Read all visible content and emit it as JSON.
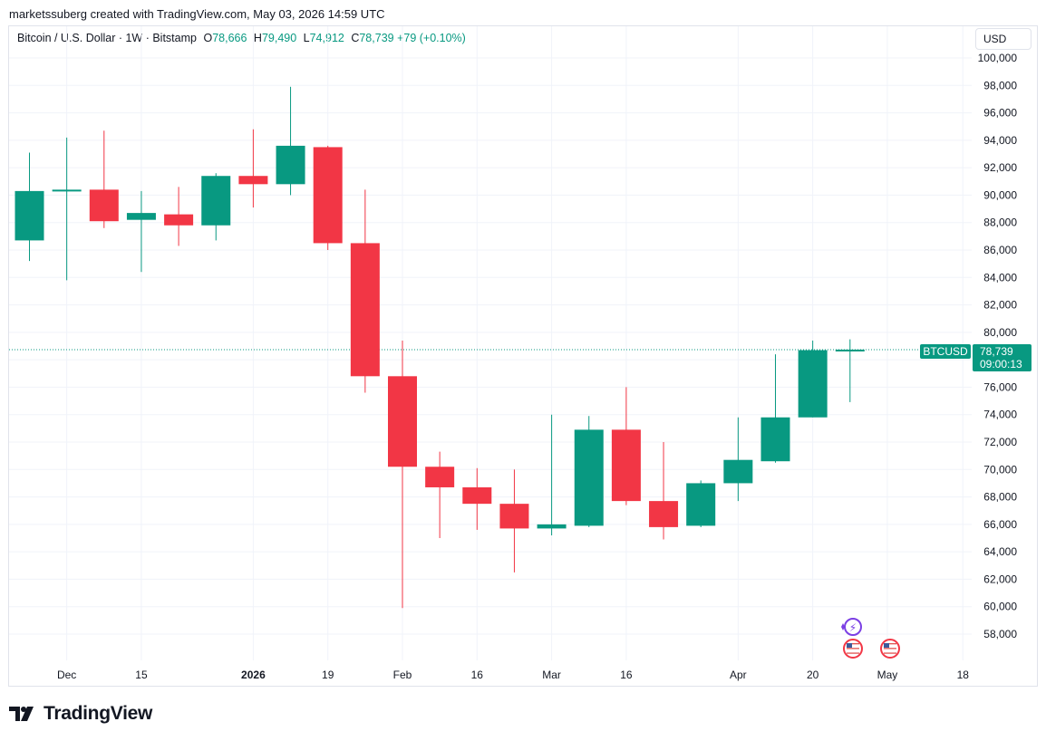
{
  "attribution": "marketssuberg created with TradingView.com, May 03, 2026 14:59 UTC",
  "legend": {
    "symbol": "Bitcoin / U.S. Dollar · 1W · Bitstamp",
    "o_label": "O",
    "o": "78,666",
    "h_label": "H",
    "h": "79,490",
    "l_label": "L",
    "l": "74,912",
    "c_label": "C",
    "c": "78,739",
    "change": "+79 (+0.10%)"
  },
  "currency": "USD",
  "price_tag": {
    "symbol": "BTCUSD",
    "price": "78,739",
    "countdown": "09:00:13"
  },
  "brand": "TradingView",
  "colors": {
    "up": "#089981",
    "down": "#f23645",
    "grid": "#f0f3fa",
    "text": "#131722",
    "purple": "#7b3fe4"
  },
  "chart_data": {
    "type": "candlestick",
    "interval": "1W",
    "ylim": [
      56000,
      101000
    ],
    "y_ticks": [
      58000,
      60000,
      62000,
      64000,
      66000,
      68000,
      70000,
      72000,
      74000,
      76000,
      78000,
      80000,
      82000,
      84000,
      86000,
      88000,
      90000,
      92000,
      94000,
      96000,
      98000,
      100000
    ],
    "x_ticks": [
      {
        "label": "Dec",
        "index": 1
      },
      {
        "label": "15",
        "index": 3
      },
      {
        "label": "2026",
        "index": 6,
        "bold": true
      },
      {
        "label": "19",
        "index": 8
      },
      {
        "label": "Feb",
        "index": 10
      },
      {
        "label": "16",
        "index": 12
      },
      {
        "label": "Mar",
        "index": 14
      },
      {
        "label": "16",
        "index": 16
      },
      {
        "label": "Apr",
        "index": 19
      },
      {
        "label": "20",
        "index": 21
      },
      {
        "label": "May",
        "index": 23
      },
      {
        "label": "18",
        "index": 25
      }
    ],
    "candles": [
      {
        "o": 86700,
        "h": 93100,
        "l": 85200,
        "c": 90300
      },
      {
        "o": 90300,
        "h": 94200,
        "l": 83800,
        "c": 90400
      },
      {
        "o": 90400,
        "h": 94700,
        "l": 87600,
        "c": 88100
      },
      {
        "o": 88200,
        "h": 90300,
        "l": 84400,
        "c": 88700
      },
      {
        "o": 88600,
        "h": 90600,
        "l": 86300,
        "c": 87800
      },
      {
        "o": 87800,
        "h": 91600,
        "l": 86700,
        "c": 91400
      },
      {
        "o": 91400,
        "h": 94800,
        "l": 89100,
        "c": 90800
      },
      {
        "o": 90800,
        "h": 97900,
        "l": 90000,
        "c": 93600
      },
      {
        "o": 93500,
        "h": 93600,
        "l": 86000,
        "c": 86500
      },
      {
        "o": 86500,
        "h": 90400,
        "l": 75600,
        "c": 76800
      },
      {
        "o": 76800,
        "h": 79400,
        "l": 59900,
        "c": 70200
      },
      {
        "o": 70200,
        "h": 71300,
        "l": 65000,
        "c": 68700
      },
      {
        "o": 68700,
        "h": 70100,
        "l": 65600,
        "c": 67500
      },
      {
        "o": 67500,
        "h": 70000,
        "l": 62500,
        "c": 65700
      },
      {
        "o": 65700,
        "h": 74000,
        "l": 65200,
        "c": 66000
      },
      {
        "o": 65900,
        "h": 73900,
        "l": 65800,
        "c": 72900
      },
      {
        "o": 72900,
        "h": 76000,
        "l": 67400,
        "c": 67700
      },
      {
        "o": 67700,
        "h": 72000,
        "l": 64900,
        "c": 65800
      },
      {
        "o": 65900,
        "h": 69200,
        "l": 65800,
        "c": 69000
      },
      {
        "o": 69000,
        "h": 73800,
        "l": 67700,
        "c": 70700
      },
      {
        "o": 70600,
        "h": 78400,
        "l": 70500,
        "c": 73800
      },
      {
        "o": 73800,
        "h": 79400,
        "l": 73800,
        "c": 78700
      },
      {
        "o": 78666,
        "h": 79490,
        "l": 74912,
        "c": 78739
      }
    ],
    "last_price": 78739
  },
  "event_icons": [
    {
      "name": "flash-event-icon",
      "index": 22,
      "glyph": "⚡"
    },
    {
      "name": "us-flag-event-icon",
      "index": 22,
      "glyph": ""
    },
    {
      "name": "us-flag-event-icon",
      "index": 23,
      "glyph": ""
    }
  ]
}
